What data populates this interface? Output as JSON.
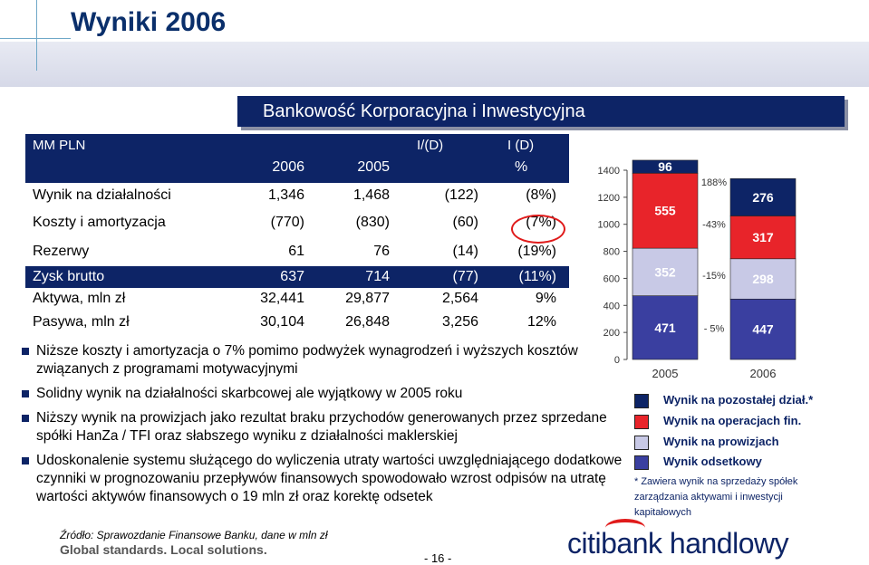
{
  "title": "Wyniki 2006",
  "section_title": "Bankowość Korporacyjna i Inwestycyjna",
  "table": {
    "unit_label": "MM PLN",
    "col_headers_top": [
      "I/(D)",
      "I (D)"
    ],
    "col_headers": [
      "2006",
      "2005",
      "",
      "%"
    ],
    "rows": [
      {
        "label": "Wynik na działalności",
        "v2006": "1,346",
        "v2005": "1,468",
        "diff": "(122)",
        "pct": "(8%)"
      },
      {
        "label": "Koszty i amortyzacja",
        "v2006": "(770)",
        "v2005": "(830)",
        "diff": "(60)",
        "pct": "(7%)"
      },
      {
        "label": "Rezerwy",
        "v2006": "61",
        "v2005": "76",
        "diff": "(14)",
        "pct": "(19%)"
      },
      {
        "label": "Zysk brutto",
        "v2006": "637",
        "v2005": "714",
        "diff": "(77)",
        "pct": "(11%)"
      },
      {
        "label": "Aktywa, mln zł",
        "v2006": "32,441",
        "v2005": "29,877",
        "diff": "2,564",
        "pct": "9%"
      },
      {
        "label": "Pasywa, mln zł",
        "v2006": "30,104",
        "v2005": "26,848",
        "diff": "3,256",
        "pct": "12%"
      }
    ]
  },
  "bullets": [
    "Niższe koszty i amortyzacja o 7% pomimo podwyżek wynagrodzeń i wyższych kosztów związanych z programami motywacyjnymi",
    "Solidny wynik na działalności skarbcowej ale wyjątkowy w 2005 roku",
    "Niższy wynik na prowizjach jako rezultat braku przychodów generowanych przez sprzedane spółki  HanZa / TFI oraz słabszego wyniku z działalności maklerskiej",
    "Udoskonalenie systemu służącego do wyliczenia utraty wartości uwzględniającego dodatkowe czynniki w prognozowaniu przepływów finansowych spowodowało wzrost odpisów na utratę wartości aktywów finansowych o 19 mln zł oraz korektę odsetek"
  ],
  "chart_data": {
    "type": "bar",
    "stacked": true,
    "categories": [
      "2005",
      "2006"
    ],
    "ylim": [
      0,
      1400
    ],
    "yticks": [
      0,
      200,
      400,
      600,
      800,
      1000,
      1200,
      1400
    ],
    "series": [
      {
        "name": "Wynik odsetkowy",
        "values": [
          471,
          447
        ],
        "color": "#3a3fa0"
      },
      {
        "name": "Wynik na prowizjach",
        "values": [
          352,
          298
        ],
        "color": "#c8c9e6"
      },
      {
        "name": "Wynik na operacjach fin.",
        "values": [
          555,
          317
        ],
        "color": "#e8242a"
      },
      {
        "name": "Wynik na pozostałej dział.*",
        "values": [
          96,
          276
        ],
        "color": "#0d2466"
      }
    ],
    "change_labels": [
      "- 5%",
      "-15%",
      "-43%",
      "188%"
    ],
    "legend": "right-bottom"
  },
  "legend_note": [
    "* Zawiera wynik na sprzedaży spółek",
    "zarządzania aktywami i inwestycji",
    "kapitałowych"
  ],
  "footer": {
    "source": "Źródło: Sprawozdanie Finansowe Banku, dane w mln zł",
    "slogan": "Global standards. Local solutions.",
    "page": "- 16 -",
    "logo": "citibank handlowy"
  }
}
